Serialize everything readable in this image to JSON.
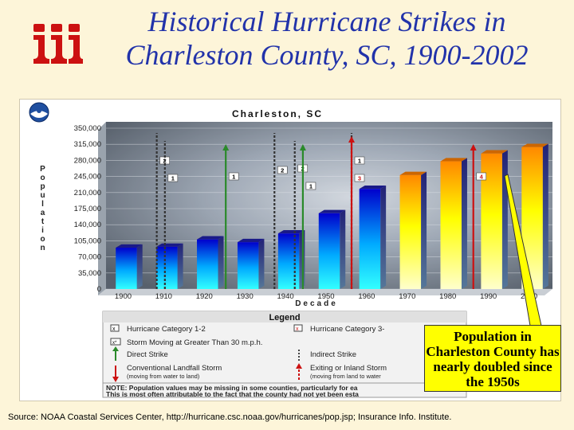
{
  "title": {
    "line1": "Historical Hurricane Strikes in",
    "line2": "Charleston County, SC, 1900-2002"
  },
  "logo_icon": "iii-logo-icon",
  "badge_icon": "noaa-logo-icon",
  "chart_data": {
    "type": "bar",
    "title": "Charleston, SC",
    "xlabel": "Decade",
    "ylabel": "Population",
    "categories": [
      "1900",
      "1910",
      "1920",
      "1930",
      "1940",
      "1950",
      "1960",
      "1970",
      "1980",
      "1990",
      "2000"
    ],
    "values": [
      90000,
      92000,
      108000,
      102000,
      121000,
      165000,
      218000,
      248000,
      278000,
      295000,
      309000
    ],
    "ylim": [
      0,
      350000
    ],
    "yticks": [
      "350,000",
      "315,000",
      "280,000",
      "245,000",
      "210,000",
      "175,000",
      "140,000",
      "105,000",
      "70,000",
      "35,000",
      "0"
    ],
    "grid": true,
    "storms": [
      {
        "year": 1911,
        "category": "2",
        "direct": false
      },
      {
        "year": 1913,
        "category": "1",
        "direct": false
      },
      {
        "year": 1928,
        "category": "1",
        "direct": true
      },
      {
        "year": 1940,
        "category": "2",
        "direct": false
      },
      {
        "year": 1945,
        "category": "2",
        "direct": false
      },
      {
        "year": 1947,
        "category": "1",
        "direct": true
      },
      {
        "year": 1959,
        "category": "1",
        "direct": false
      },
      {
        "year": 1959,
        "category": "3",
        "direct": true
      },
      {
        "year": 1989,
        "category": "4",
        "direct": true
      }
    ]
  },
  "legend": {
    "title": "Legend",
    "cat12": "Hurricane Category 1-2",
    "cat35": "Hurricane Category 3-",
    "fast": "Storm Moving at Greater Than 30 m.p.h.",
    "direct": "Direct Strike",
    "indirect": "Indirect Strike",
    "conventional": "Conventional Landfall Storm",
    "conventional_sub": "(moving from water to land)",
    "exiting": "Exiting or Inland Storm",
    "exiting_sub": "(moving from land to water",
    "note1": "NOTE: Population values may be missing in some counties, particularly for ea",
    "note2": "This is most often attributable to the fact that the county had not yet been esta"
  },
  "callout": "Population in Charleston County has nearly doubled since the 1950s",
  "source": "Source: NOAA Coastal Services Center, http://hurricane.csc.noaa.gov/hurricanes/pop.jsp; Insurance Info. Institute.",
  "colors": {
    "title": "#2233aa",
    "logo": "#cc1111",
    "direct_arrow": "#2a8a2a",
    "strike_red": "#cc1111",
    "callout_bg": "#ffff00"
  }
}
